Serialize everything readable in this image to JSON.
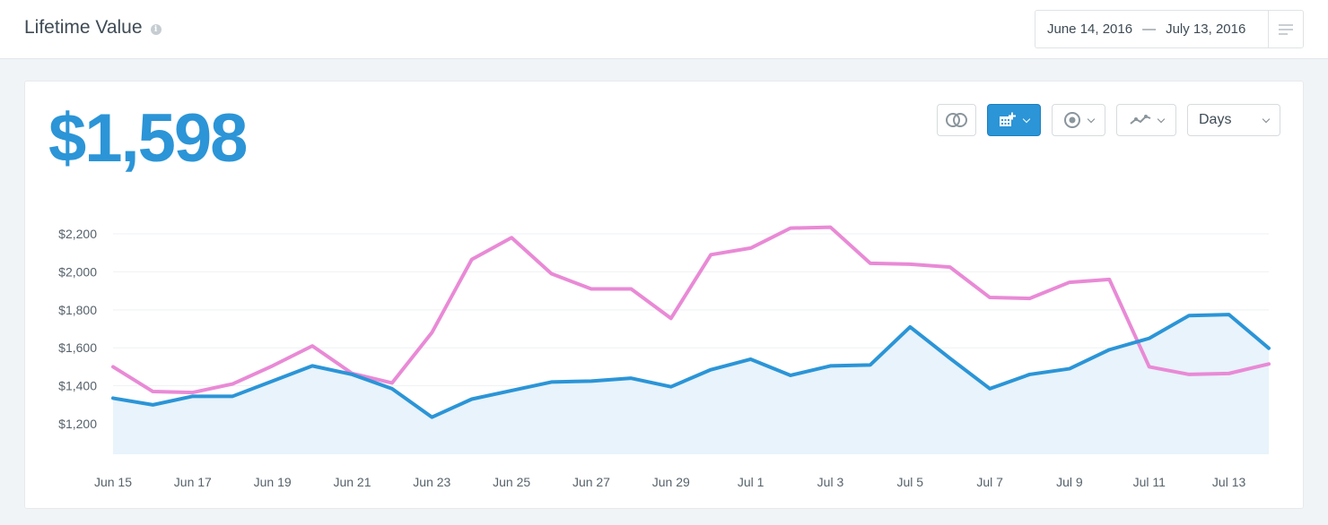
{
  "header": {
    "title": "Lifetime Value",
    "info_icon": "info-icon",
    "date_start": "June 14, 2016",
    "date_separator": "—",
    "date_end": "July 13, 2016",
    "menu_icon": "list-menu-icon"
  },
  "card": {
    "big_value": "$1,598",
    "toolbar": {
      "compare_icon": "overlapping-circles-icon",
      "calendar_icon": "calendar-add-icon",
      "goal_icon": "target-icon",
      "chart_type_icon": "line-chart-icon",
      "interval_value": "Days"
    }
  },
  "colors": {
    "accent": "#2b95d7",
    "comparison": "#e98ad6",
    "area_fill": "#e8f3fb"
  },
  "chart_data": {
    "type": "line",
    "title": "",
    "xlabel": "",
    "ylabel": "",
    "x_tick_labels": [
      "Jun 15",
      "Jun 17",
      "Jun 19",
      "Jun 21",
      "Jun 23",
      "Jun 25",
      "Jun 27",
      "Jun 29",
      "Jul 1",
      "Jul 3",
      "Jul 5",
      "Jul 7",
      "Jul 9",
      "Jul 11",
      "Jul 13"
    ],
    "y_ticks": [
      1200,
      1400,
      1600,
      1800,
      2000,
      2200
    ],
    "y_tick_labels": [
      "$1,200",
      "$1,400",
      "$1,600",
      "$1,800",
      "$2,000",
      "$2,200"
    ],
    "ylim": [
      1040,
      2200
    ],
    "grid": true,
    "series": [
      {
        "color": "#2b95d7",
        "fill": true,
        "values": [
          1335,
          1300,
          1345,
          1345,
          1425,
          1505,
          1460,
          1385,
          1235,
          1330,
          1375,
          1420,
          1425,
          1440,
          1395,
          1485,
          1540,
          1455,
          1505,
          1510,
          1710,
          1545,
          1385,
          1460,
          1490,
          1590,
          1650,
          1770,
          1775,
          1598
        ]
      },
      {
        "color": "#e98ad6",
        "fill": false,
        "values": [
          1500,
          1370,
          1365,
          1410,
          1505,
          1610,
          1465,
          1415,
          1680,
          2065,
          2180,
          1990,
          1910,
          1910,
          1755,
          2090,
          2125,
          2230,
          2235,
          2045,
          2040,
          2025,
          1865,
          1860,
          1945,
          1960,
          1500,
          1460,
          1465,
          1515
        ]
      }
    ]
  }
}
